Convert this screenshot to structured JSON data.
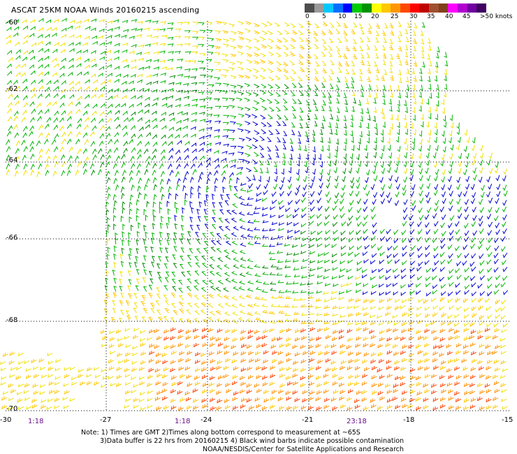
{
  "title": "ASCAT 25KM NOAA Winds 20160215 ascending",
  "colorbar": {
    "colors": [
      "#4d4d4d",
      "#9a9a9a",
      "#00c8ff",
      "#0070ff",
      "#0000ff",
      "#00cc00",
      "#009000",
      "#ffff00",
      "#ffc800",
      "#ff9600",
      "#ff4800",
      "#ff0000",
      "#c00000",
      "#a05030",
      "#804020",
      "#ff00ff",
      "#b000d0",
      "#7000a0",
      "#400060"
    ],
    "labels": [
      "0",
      "5",
      "10",
      "15",
      "20",
      "25",
      "30",
      "35",
      "40",
      "45",
      ">50 knots"
    ]
  },
  "map": {
    "lat_labels": [
      "-60",
      "-62",
      "-64",
      "-66",
      "-68",
      "-70"
    ],
    "lon_labels": [
      "-30",
      "-27",
      "-24",
      "-21",
      "-18",
      "-15"
    ],
    "time_labels": [
      "1:18",
      "1:18",
      "23:18"
    ],
    "grid": "dotted"
  },
  "notes": [
    "Note: 1) Times are GMT 2)Times along bottom correspond to measurement at ~65S",
    "3)Data buffer is 22 hrs from 20160215 4) Black wind barbs indicate possible contamination",
    "NOAA/NESDIS/Center for Satellite Applications and Research"
  ]
}
